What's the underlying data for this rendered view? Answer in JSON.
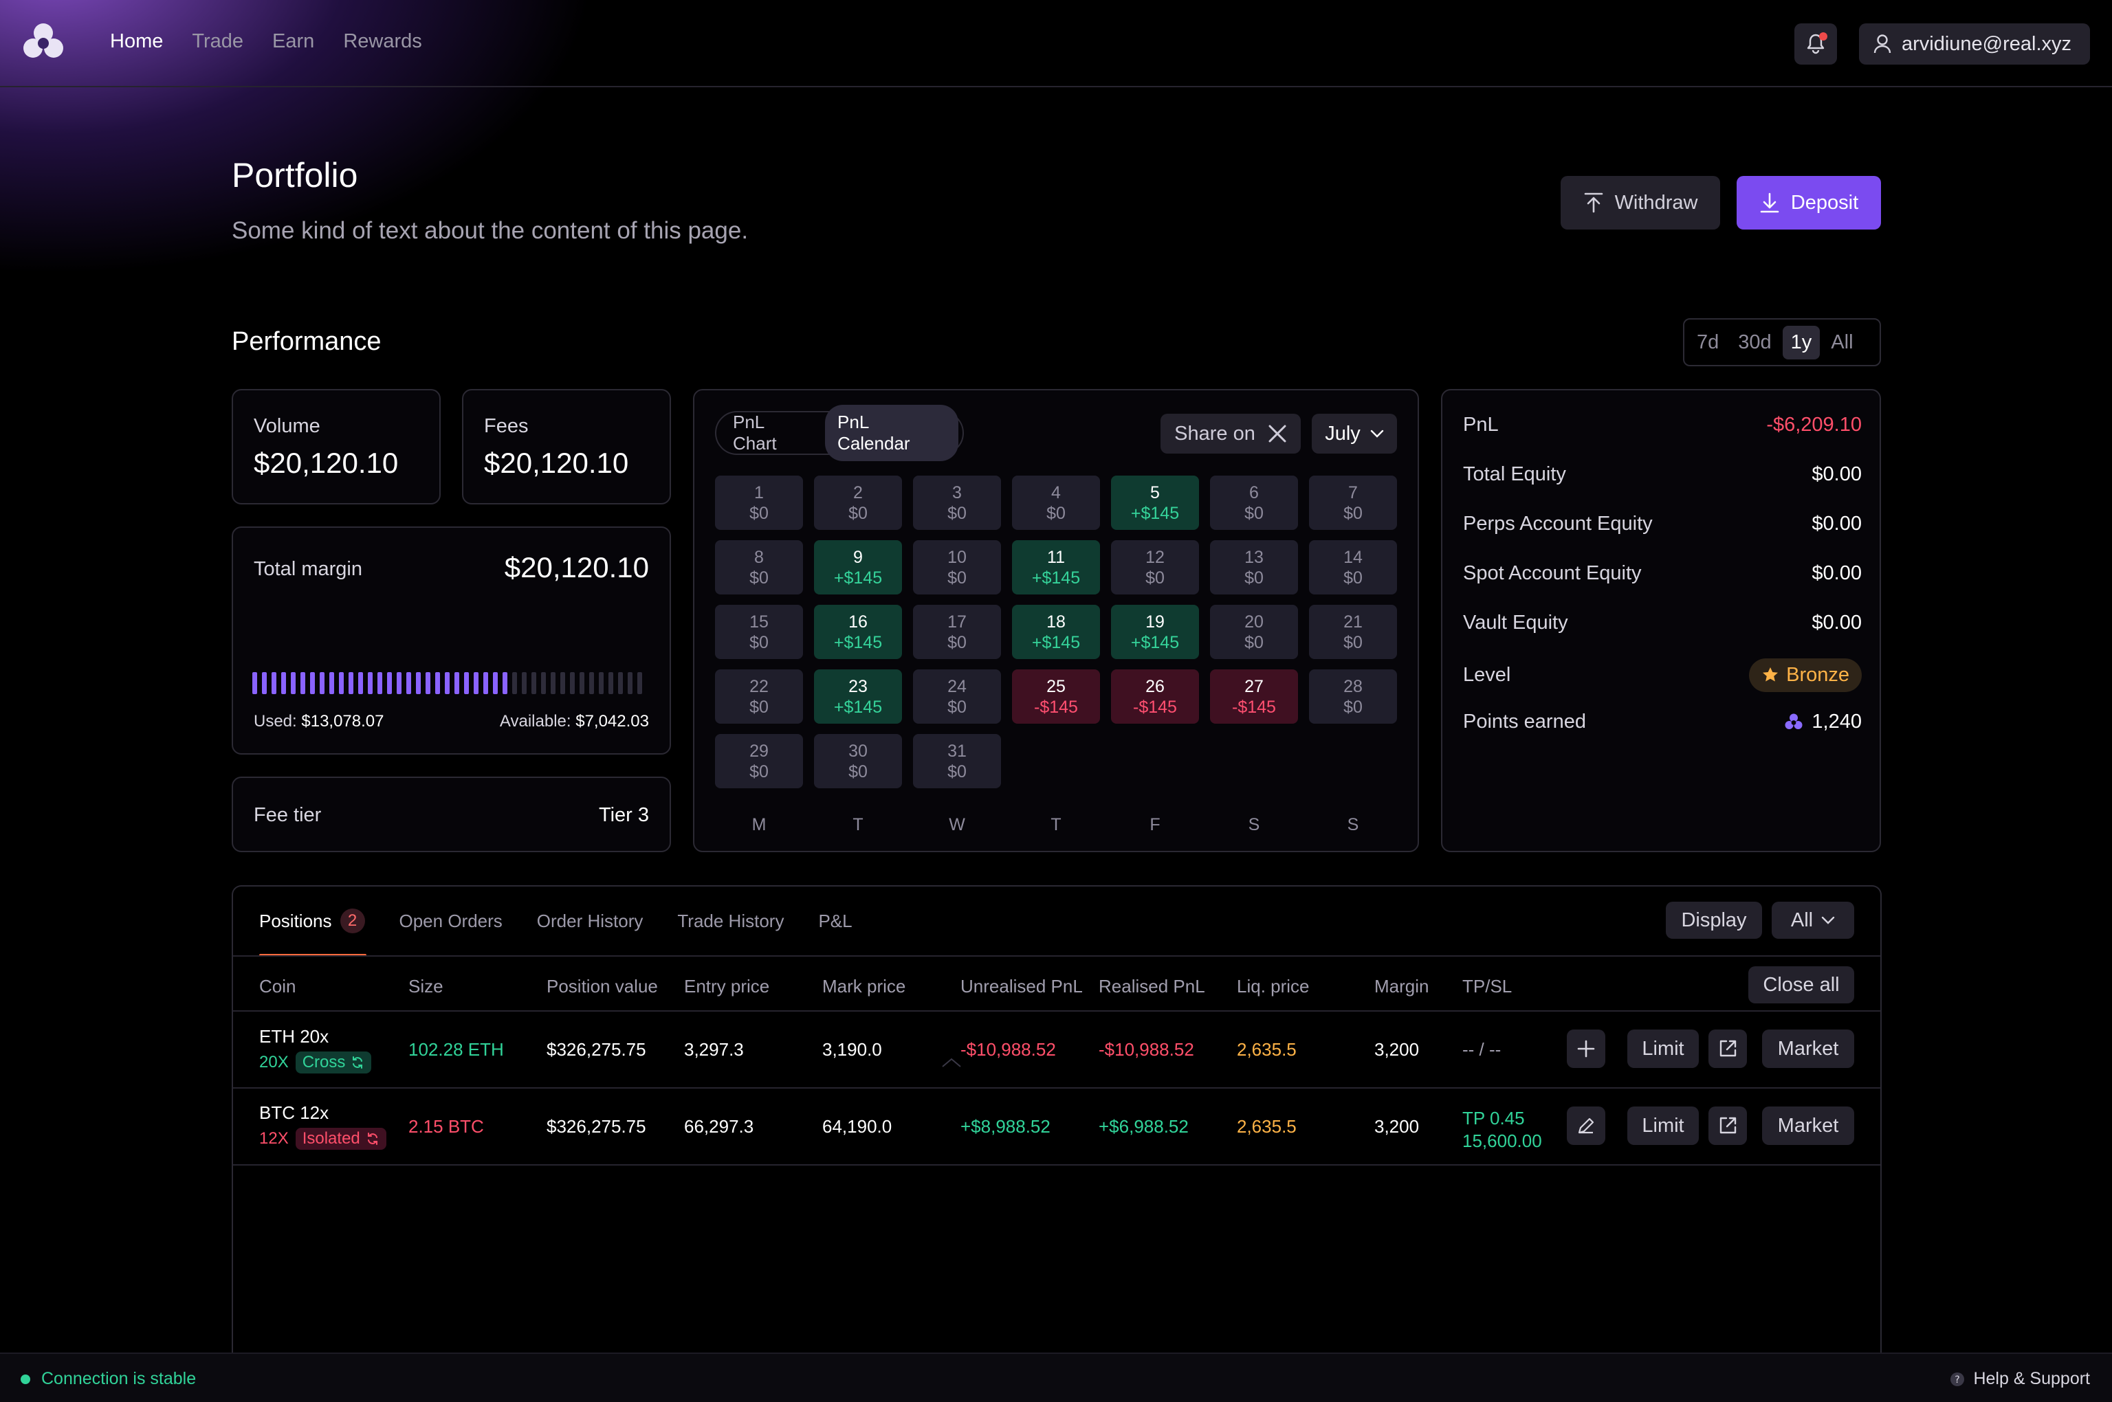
{
  "nav": {
    "links": [
      "Home",
      "Trade",
      "Earn",
      "Rewards"
    ],
    "active": "Home",
    "user_email": "arvidiune@real.xyz"
  },
  "header": {
    "title": "Portfolio",
    "subtitle": "Some kind of text about the content of this page.",
    "withdraw_label": "Withdraw",
    "deposit_label": "Deposit"
  },
  "performance": {
    "title": "Performance",
    "ranges": [
      "7d",
      "30d",
      "1y",
      "All"
    ],
    "selected_range": "1y",
    "volume_label": "Volume",
    "volume_value": "$20,120.10",
    "fees_label": "Fees",
    "fees_value": "$20,120.10",
    "margin_label": "Total margin",
    "margin_value": "$20,120.10",
    "used_label": "Used:",
    "used_value": "$13,078.07",
    "available_label": "Available:",
    "available_value": "$7,042.03",
    "margin_used_fraction": 0.65,
    "fee_tier_label": "Fee tier",
    "fee_tier_value": "Tier 3"
  },
  "calendar": {
    "toggle": [
      "PnL Chart",
      "PnL Calendar"
    ],
    "selected_toggle": "PnL Calendar",
    "share_label": "Share on",
    "month": "July",
    "weekdays": [
      "M",
      "T",
      "W",
      "T",
      "F",
      "S",
      "S"
    ],
    "days": [
      {
        "d": "1",
        "v": "$0",
        "s": "zero"
      },
      {
        "d": "2",
        "v": "$0",
        "s": "zero"
      },
      {
        "d": "3",
        "v": "$0",
        "s": "zero"
      },
      {
        "d": "4",
        "v": "$0",
        "s": "zero"
      },
      {
        "d": "5",
        "v": "+$145",
        "s": "pos"
      },
      {
        "d": "6",
        "v": "$0",
        "s": "zero"
      },
      {
        "d": "7",
        "v": "$0",
        "s": "zero"
      },
      {
        "d": "8",
        "v": "$0",
        "s": "zero"
      },
      {
        "d": "9",
        "v": "+$145",
        "s": "pos"
      },
      {
        "d": "10",
        "v": "$0",
        "s": "zero"
      },
      {
        "d": "11",
        "v": "+$145",
        "s": "pos"
      },
      {
        "d": "12",
        "v": "$0",
        "s": "zero"
      },
      {
        "d": "13",
        "v": "$0",
        "s": "zero"
      },
      {
        "d": "14",
        "v": "$0",
        "s": "zero"
      },
      {
        "d": "15",
        "v": "$0",
        "s": "zero"
      },
      {
        "d": "16",
        "v": "+$145",
        "s": "pos"
      },
      {
        "d": "17",
        "v": "$0",
        "s": "zero"
      },
      {
        "d": "18",
        "v": "+$145",
        "s": "pos"
      },
      {
        "d": "19",
        "v": "+$145",
        "s": "pos"
      },
      {
        "d": "20",
        "v": "$0",
        "s": "zero"
      },
      {
        "d": "21",
        "v": "$0",
        "s": "zero"
      },
      {
        "d": "22",
        "v": "$0",
        "s": "zero"
      },
      {
        "d": "23",
        "v": "+$145",
        "s": "pos"
      },
      {
        "d": "24",
        "v": "$0",
        "s": "zero"
      },
      {
        "d": "25",
        "v": "-$145",
        "s": "neg"
      },
      {
        "d": "26",
        "v": "-$145",
        "s": "neg"
      },
      {
        "d": "27",
        "v": "-$145",
        "s": "neg"
      },
      {
        "d": "28",
        "v": "$0",
        "s": "zero"
      },
      {
        "d": "29",
        "v": "$0",
        "s": "zero"
      },
      {
        "d": "30",
        "v": "$0",
        "s": "zero"
      },
      {
        "d": "31",
        "v": "$0",
        "s": "zero"
      }
    ]
  },
  "stats": {
    "pnl_label": "PnL",
    "pnl_value": "-$6,209.10",
    "total_equity_label": "Total Equity",
    "total_equity_value": "$0.00",
    "perps_label": "Perps Account Equity",
    "perps_value": "$0.00",
    "spot_label": "Spot Account Equity",
    "spot_value": "$0.00",
    "vault_label": "Vault Equity",
    "vault_value": "$0.00",
    "level_label": "Level",
    "level_value": "Bronze",
    "points_label": "Points earned",
    "points_value": "1,240"
  },
  "positions": {
    "tabs": [
      "Positions",
      "Open Orders",
      "Order History",
      "Trade History",
      "P&L"
    ],
    "positions_count": "2",
    "display_label": "Display",
    "filter_label": "All",
    "close_all_label": "Close all",
    "columns": [
      "Coin",
      "Size",
      "Position value",
      "Entry price",
      "Mark price",
      "Unrealised PnL",
      "Realised PnL",
      "Liq. price",
      "Margin",
      "TP/SL"
    ],
    "rows": [
      {
        "coin": "ETH 20x",
        "lev": "20X",
        "mode": "Cross",
        "size": "102.28 ETH",
        "value": "$326,275.75",
        "entry": "3,297.3",
        "mark": "3,190.0",
        "upnl": "-$10,988.52",
        "rpnl": "-$10,988.52",
        "liq": "2,635.5",
        "margin": "3,200",
        "tpsl1": "-- / --",
        "tpsl2": "",
        "side": "long"
      },
      {
        "coin": "BTC 12x",
        "lev": "12X",
        "mode": "Isolated",
        "size": "2.15 BTC",
        "value": "$326,275.75",
        "entry": "66,297.3",
        "mark": "64,190.0",
        "upnl": "+$8,988.52",
        "rpnl": "+$6,988.52",
        "liq": "2,635.5",
        "margin": "3,200",
        "tpsl1": "TP 0.45",
        "tpsl2": "15,600.00",
        "side": "short"
      }
    ],
    "limit_label": "Limit",
    "market_label": "Market"
  },
  "status": {
    "connection": "Connection is stable",
    "help": "Help & Support"
  },
  "colors": {
    "accent": "#7b4bf0",
    "positive": "#31d399",
    "negative": "#ff4f6a",
    "warning": "#ffb347"
  }
}
